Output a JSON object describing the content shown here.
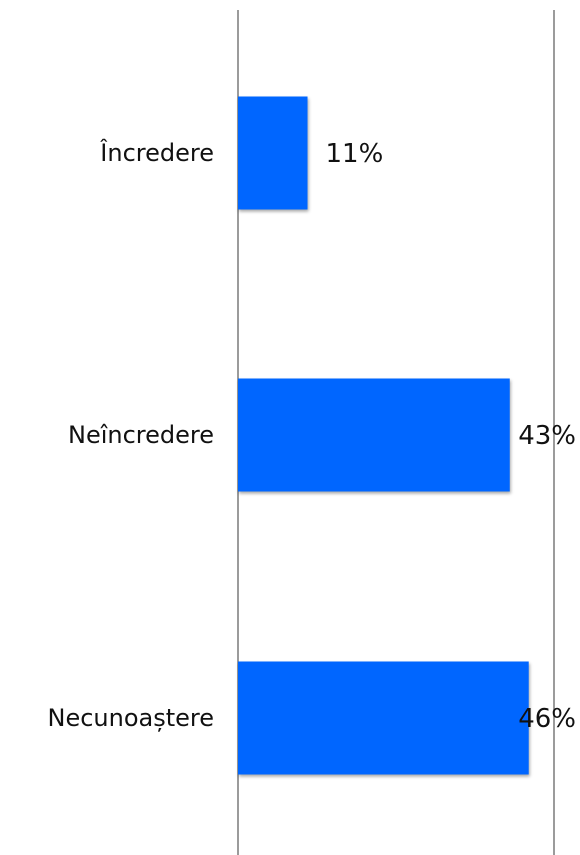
{
  "chart_data": {
    "type": "bar",
    "orientation": "horizontal",
    "categories": [
      "Încredere",
      "Neîncredere",
      "Necunoaștere"
    ],
    "values": [
      11,
      43,
      46
    ],
    "value_labels": [
      "11%",
      "43%",
      "46%"
    ],
    "xlim": [
      0,
      50
    ],
    "grid": true,
    "bar_color": "#0066ff",
    "title": "",
    "xlabel": "",
    "ylabel": ""
  }
}
